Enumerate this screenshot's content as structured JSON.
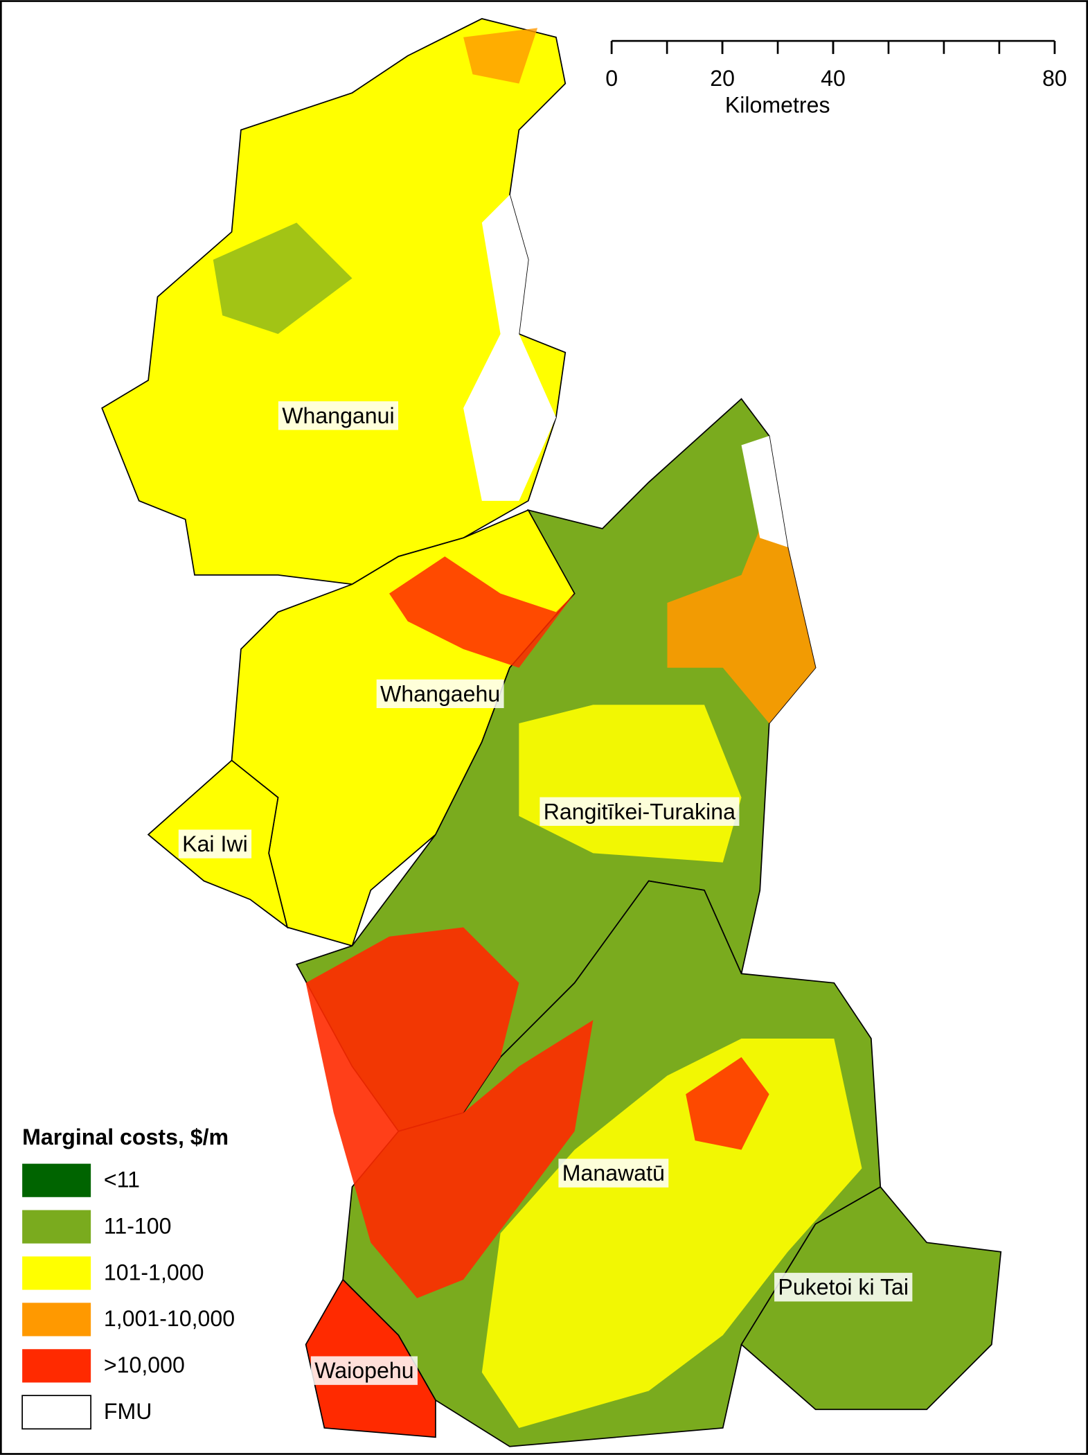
{
  "scale_bar": {
    "ticks": [
      0,
      20,
      40,
      80
    ],
    "unit": "Kilometres"
  },
  "regions": [
    "Whanganui",
    "Whangaehu",
    "Rangitīkei-Turakina",
    "Kai Iwi",
    "Manawatū",
    "Puketoi ki Tai",
    "Waiopehu"
  ],
  "legend": {
    "title": "Marginal costs, $/m",
    "items": [
      {
        "label": "<11",
        "color": "#006400"
      },
      {
        "label": "11-100",
        "color": "#7aab1e"
      },
      {
        "label": "101-1,000",
        "color": "#ffff00"
      },
      {
        "label": "1,001-10,000",
        "color": "#ff9900"
      },
      {
        "label": ">10,000",
        "color": "#ff2a00"
      },
      {
        "label": "FMU",
        "color": "#ffffff"
      }
    ]
  }
}
